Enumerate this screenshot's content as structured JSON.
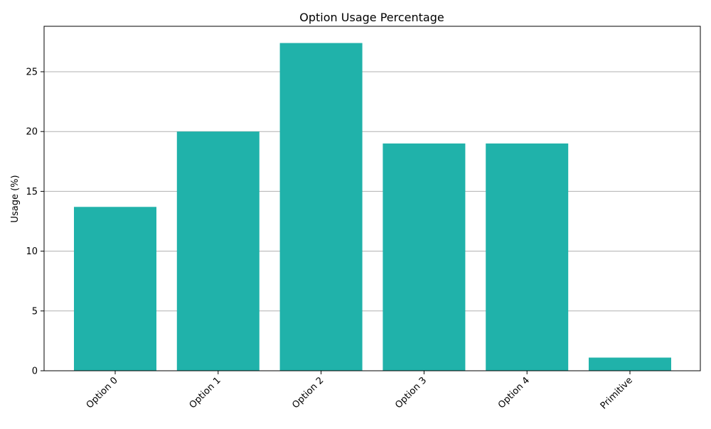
{
  "chart_data": {
    "type": "bar",
    "title": "Option Usage Percentage",
    "xlabel": "",
    "ylabel": "Usage (%)",
    "categories": [
      "Option 0",
      "Option 1",
      "Option 2",
      "Option 3",
      "Option 4",
      "Primitive"
    ],
    "values": [
      13.7,
      20.0,
      27.4,
      19.0,
      19.0,
      1.1
    ],
    "ylim": [
      0,
      28.8
    ],
    "yticks": [
      0,
      5,
      10,
      15,
      20,
      25
    ],
    "grid": "y-axis horizontal lines",
    "legend": "none",
    "colors": {
      "bar": "#20b2aa",
      "grid": "#b0b0b0",
      "axis": "#000000"
    }
  }
}
